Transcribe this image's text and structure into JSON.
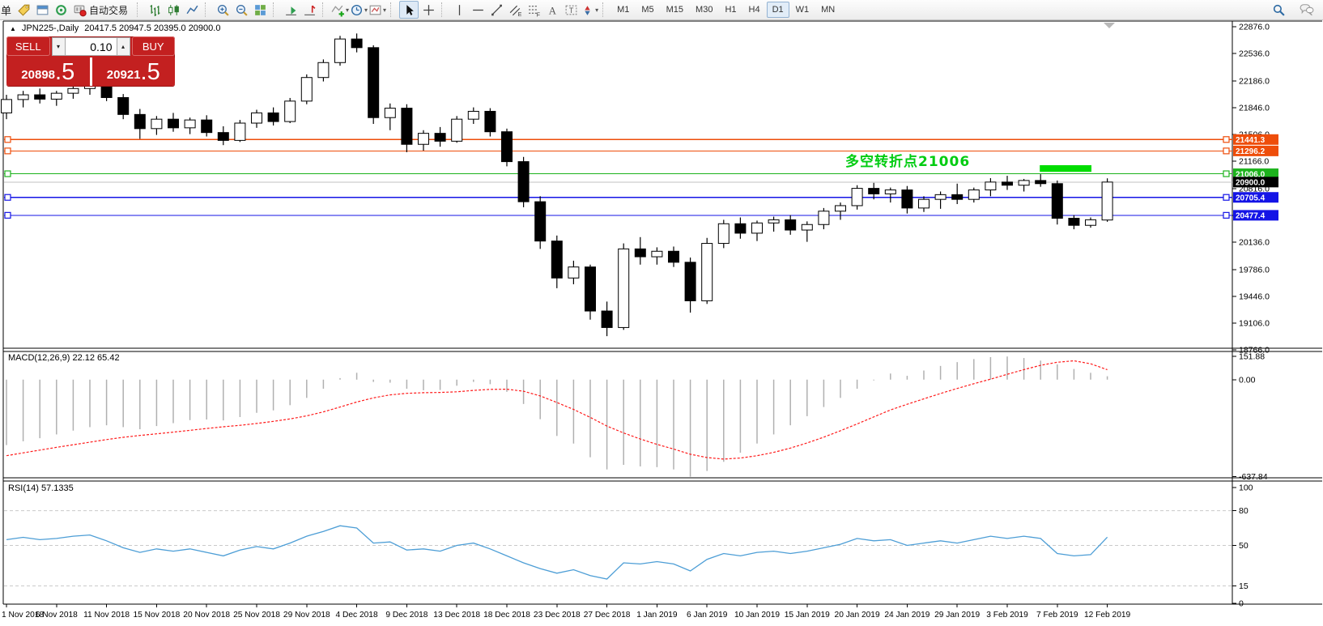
{
  "toolbar": {
    "menu_fragment": "单",
    "autotrading_label": "自动交易",
    "timeframes": [
      "M1",
      "M5",
      "M15",
      "M30",
      "H1",
      "H4",
      "D1",
      "W1",
      "MN"
    ],
    "active_timeframe": "D1"
  },
  "chart": {
    "symbol_title": "JPN225-,Daily",
    "ohlc_summary": "20417.5 20947.5 20395.0 20900.0",
    "collapse_arrow": "▲"
  },
  "one_click": {
    "sell_label": "SELL",
    "buy_label": "BUY",
    "volume": "0.10",
    "decrease_glyph": "▾",
    "increase_glyph": "▴",
    "bid_main": "20898",
    "bid_big": ".5",
    "ask_main": "20921",
    "ask_big": ".5"
  },
  "annotation": {
    "text": "多空转折点21006",
    "color": "#00cc11"
  },
  "indicators": {
    "macd_label": "MACD(12,26,9) 22.12 65.42",
    "rsi_label": "RSI(14) 57.1335"
  },
  "chart_data": {
    "type": "candlestick+indicators",
    "symbol": "JPN225-",
    "timeframe": "Daily",
    "price_range": [
      18766.0,
      22876.0
    ],
    "price_axis_ticks": [
      "22876.0",
      "22536.0",
      "22186.0",
      "21846.0",
      "21506.0",
      "21166.0",
      "20816.0",
      "20476.0",
      "20136.0",
      "19786.0",
      "19446.0",
      "19106.0",
      "18766.0"
    ],
    "price_levels": [
      {
        "value": 21441.3,
        "label": "21441.3",
        "color": "#ee4d0a"
      },
      {
        "value": 21296.2,
        "label": "21296.2",
        "color": "#ee4d0a"
      },
      {
        "value": 21006.0,
        "label": "21006.0",
        "color": "#1db31d"
      },
      {
        "value": 20705.4,
        "label": "20705.4",
        "color": "#1414e6"
      },
      {
        "value": 20477.4,
        "label": "20477.4",
        "color": "#1414e6"
      }
    ],
    "bid_line": {
      "value": 20898.5,
      "color": "#c0c0c0"
    },
    "last_price_label": {
      "value": 20900.0,
      "label": "20900.0",
      "bg": "#000000"
    },
    "highlight_box": {
      "from_candle": 62,
      "to_candle": 65,
      "price_top": 21115,
      "price_bottom": 21030,
      "color": "#00dd00"
    },
    "x_labels": [
      "1 Nov 2018",
      "6 Nov 2018",
      "11 Nov 2018",
      "15 Nov 2018",
      "20 Nov 2018",
      "25 Nov 2018",
      "29 Nov 2018",
      "4 Dec 2018",
      "9 Dec 2018",
      "13 Dec 2018",
      "18 Dec 2018",
      "23 Dec 2018",
      "27 Dec 2018",
      "1 Jan 2019",
      "6 Jan 2019",
      "10 Jan 2019",
      "15 Jan 2019",
      "20 Jan 2019",
      "24 Jan 2019",
      "29 Jan 2019",
      "3 Feb 2019",
      "7 Feb 2019",
      "12 Feb 2019"
    ],
    "label_every_n_candles": 3,
    "candles": [
      [
        21780,
        22010,
        21700,
        21950
      ],
      [
        21950,
        22060,
        21850,
        22010
      ],
      [
        22010,
        22090,
        21900,
        21955
      ],
      [
        21955,
        22060,
        21870,
        22030
      ],
      [
        22030,
        22130,
        21960,
        22090
      ],
      [
        22090,
        22170,
        22010,
        22120
      ],
      [
        22120,
        22160,
        21930,
        21975
      ],
      [
        21975,
        22020,
        21700,
        21760
      ],
      [
        21760,
        21830,
        21450,
        21580
      ],
      [
        21580,
        21740,
        21500,
        21700
      ],
      [
        21700,
        21780,
        21540,
        21590
      ],
      [
        21590,
        21720,
        21510,
        21690
      ],
      [
        21690,
        21750,
        21480,
        21530
      ],
      [
        21530,
        21610,
        21370,
        21430
      ],
      [
        21430,
        21690,
        21410,
        21650
      ],
      [
        21650,
        21820,
        21590,
        21780
      ],
      [
        21780,
        21850,
        21620,
        21670
      ],
      [
        21670,
        21970,
        21650,
        21930
      ],
      [
        21930,
        22270,
        21890,
        22230
      ],
      [
        22230,
        22460,
        22180,
        22420
      ],
      [
        22420,
        22760,
        22380,
        22720
      ],
      [
        22720,
        22790,
        22550,
        22610
      ],
      [
        22610,
        22640,
        21640,
        21720
      ],
      [
        21720,
        21900,
        21560,
        21840
      ],
      [
        21840,
        21890,
        21280,
        21380
      ],
      [
        21380,
        21560,
        21300,
        21520
      ],
      [
        21520,
        21600,
        21350,
        21420
      ],
      [
        21420,
        21740,
        21400,
        21700
      ],
      [
        21700,
        21850,
        21640,
        21800
      ],
      [
        21800,
        21840,
        21480,
        21540
      ],
      [
        21540,
        21580,
        21100,
        21160
      ],
      [
        21160,
        21220,
        20580,
        20650
      ],
      [
        20650,
        20720,
        20050,
        20150
      ],
      [
        20150,
        20220,
        19550,
        19680
      ],
      [
        19680,
        19900,
        19600,
        19820
      ],
      [
        19820,
        19850,
        19150,
        19260
      ],
      [
        19260,
        19380,
        18940,
        19050
      ],
      [
        19050,
        20120,
        19020,
        20050
      ],
      [
        20050,
        20200,
        19850,
        19950
      ],
      [
        19950,
        20070,
        19850,
        20020
      ],
      [
        20020,
        20080,
        19820,
        19880
      ],
      [
        19880,
        19940,
        19240,
        19390
      ],
      [
        19390,
        20190,
        19350,
        20120
      ],
      [
        20120,
        20420,
        20060,
        20370
      ],
      [
        20370,
        20450,
        20180,
        20250
      ],
      [
        20250,
        20410,
        20150,
        20380
      ],
      [
        20380,
        20460,
        20270,
        20420
      ],
      [
        20420,
        20480,
        20230,
        20290
      ],
      [
        20290,
        20400,
        20140,
        20360
      ],
      [
        20360,
        20570,
        20300,
        20530
      ],
      [
        20530,
        20640,
        20420,
        20600
      ],
      [
        20600,
        20860,
        20550,
        20820
      ],
      [
        20820,
        20890,
        20680,
        20750
      ],
      [
        20750,
        20830,
        20640,
        20800
      ],
      [
        20800,
        20850,
        20500,
        20570
      ],
      [
        20570,
        20720,
        20520,
        20680
      ],
      [
        20680,
        20780,
        20560,
        20740
      ],
      [
        20740,
        20880,
        20620,
        20680
      ],
      [
        20680,
        20830,
        20640,
        20800
      ],
      [
        20800,
        20950,
        20720,
        20900
      ],
      [
        20900,
        20980,
        20800,
        20860
      ],
      [
        20860,
        20940,
        20780,
        20920
      ],
      [
        20920,
        21000,
        20840,
        20880
      ],
      [
        20880,
        20920,
        20360,
        20440
      ],
      [
        20440,
        20480,
        20300,
        20350
      ],
      [
        20350,
        20450,
        20320,
        20420
      ],
      [
        20417.5,
        20947.5,
        20395.0,
        20900.0
      ]
    ],
    "macd": {
      "name": "MACD(12,26,9)",
      "value_main": 22.12,
      "value_signal": 65.42,
      "ticks": [
        "151.88",
        "0.00",
        "-637.84"
      ],
      "range": [
        185,
        -645
      ],
      "histogram": [
        -430,
        -405,
        -385,
        -360,
        -335,
        -312,
        -300,
        -312,
        -326,
        -305,
        -286,
        -266,
        -262,
        -268,
        -246,
        -218,
        -202,
        -168,
        -120,
        -60,
        10,
        45,
        -15,
        -20,
        -60,
        -70,
        -68,
        -40,
        -15,
        -30,
        -80,
        -160,
        -260,
        -370,
        -420,
        -510,
        -590,
        -560,
        -570,
        -575,
        -590,
        -637.84,
        -600,
        -540,
        -480,
        -420,
        -360,
        -300,
        -240,
        -180,
        -120,
        -60,
        -5,
        40,
        25,
        60,
        90,
        115,
        135,
        148,
        151.88,
        142,
        125,
        100,
        70,
        45,
        22.12
      ],
      "signal": [
        -500,
        -481,
        -463,
        -445,
        -428,
        -411,
        -394,
        -379,
        -367,
        -356,
        -345,
        -333,
        -321,
        -310,
        -300,
        -288,
        -274,
        -258,
        -238,
        -212,
        -180,
        -147,
        -120,
        -100,
        -90,
        -86,
        -84,
        -80,
        -71,
        -64,
        -63,
        -76,
        -107,
        -150,
        -196,
        -248,
        -305,
        -350,
        -390,
        -425,
        -456,
        -490,
        -512,
        -522,
        -515,
        -500,
        -478,
        -450,
        -416,
        -378,
        -336,
        -291,
        -245,
        -199,
        -162,
        -126,
        -91,
        -58,
        -27,
        3,
        35,
        66,
        94,
        114,
        124,
        104,
        65.42
      ]
    },
    "rsi": {
      "name": "RSI(14)",
      "value": 57.1335,
      "ticks": [
        "100",
        "80",
        "50",
        "15",
        "0"
      ],
      "levels": [
        80,
        50,
        15
      ],
      "range": [
        0,
        100
      ],
      "values": [
        55,
        57,
        55,
        56,
        58,
        59,
        54,
        48,
        44,
        47,
        45,
        47,
        44,
        41,
        46,
        49,
        47,
        52,
        58,
        62,
        67,
        65,
        52,
        53,
        46,
        47,
        45,
        50,
        52,
        47,
        41,
        35,
        30,
        26,
        29,
        24,
        21,
        35,
        34,
        36,
        34,
        28,
        38,
        43,
        41,
        44,
        45,
        43,
        45,
        48,
        51,
        56,
        54,
        55,
        50,
        52,
        54,
        52,
        55,
        58,
        56,
        58,
        56,
        43,
        41,
        42,
        57.13
      ]
    }
  }
}
